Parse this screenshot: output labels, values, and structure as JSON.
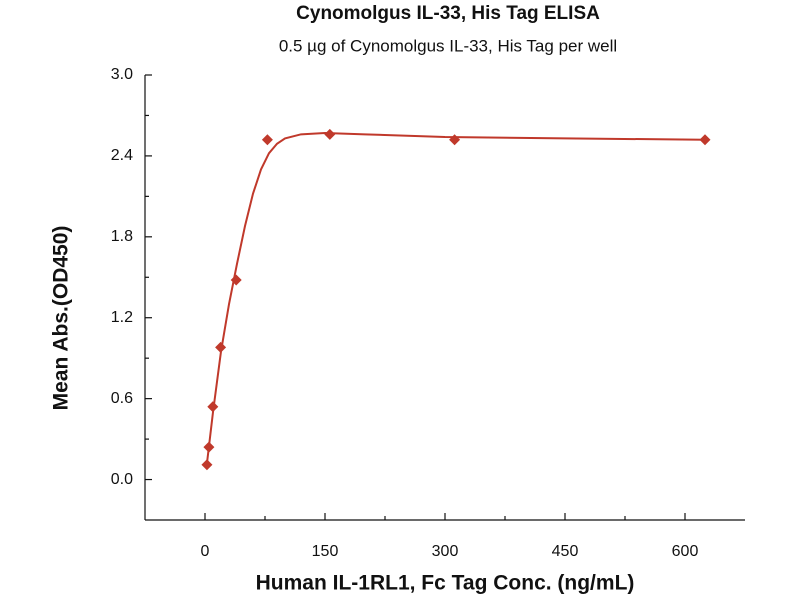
{
  "chart_data": {
    "type": "scatter",
    "title": "Cynomolgus IL-33, His Tag ELISA",
    "subtitle": "0.5 µg of Cynomolgus IL-33, His Tag per well",
    "x_label": "Human IL-1RL1, Fc Tag Conc. (ng/mL)",
    "y_label": "Mean Abs.(OD450)",
    "color": "#c0392b",
    "x": [
      2.44,
      4.88,
      9.77,
      19.5,
      39,
      78,
      156,
      312,
      625
    ],
    "values": [
      0.11,
      0.24,
      0.54,
      0.98,
      1.48,
      2.52,
      2.56,
      2.52,
      2.52
    ],
    "curve": {
      "x": [
        2.44,
        10,
        20,
        30,
        40,
        50,
        60,
        70,
        80,
        90,
        100,
        120,
        150,
        200,
        300,
        450,
        625
      ],
      "values": [
        0.12,
        0.5,
        0.95,
        1.3,
        1.6,
        1.88,
        2.12,
        2.3,
        2.42,
        2.49,
        2.53,
        2.56,
        2.57,
        2.56,
        2.54,
        2.53,
        2.52
      ]
    },
    "xlim": [
      -75,
      675
    ],
    "xticks": [
      0,
      150,
      300,
      450,
      600
    ],
    "ylim": [
      -0.3,
      3.0
    ],
    "yticks": [
      {
        "value": 0,
        "label": "0.0"
      },
      0.6,
      1.2,
      1.8,
      2.4,
      {
        "value": 3,
        "label": "3.0"
      }
    ]
  }
}
